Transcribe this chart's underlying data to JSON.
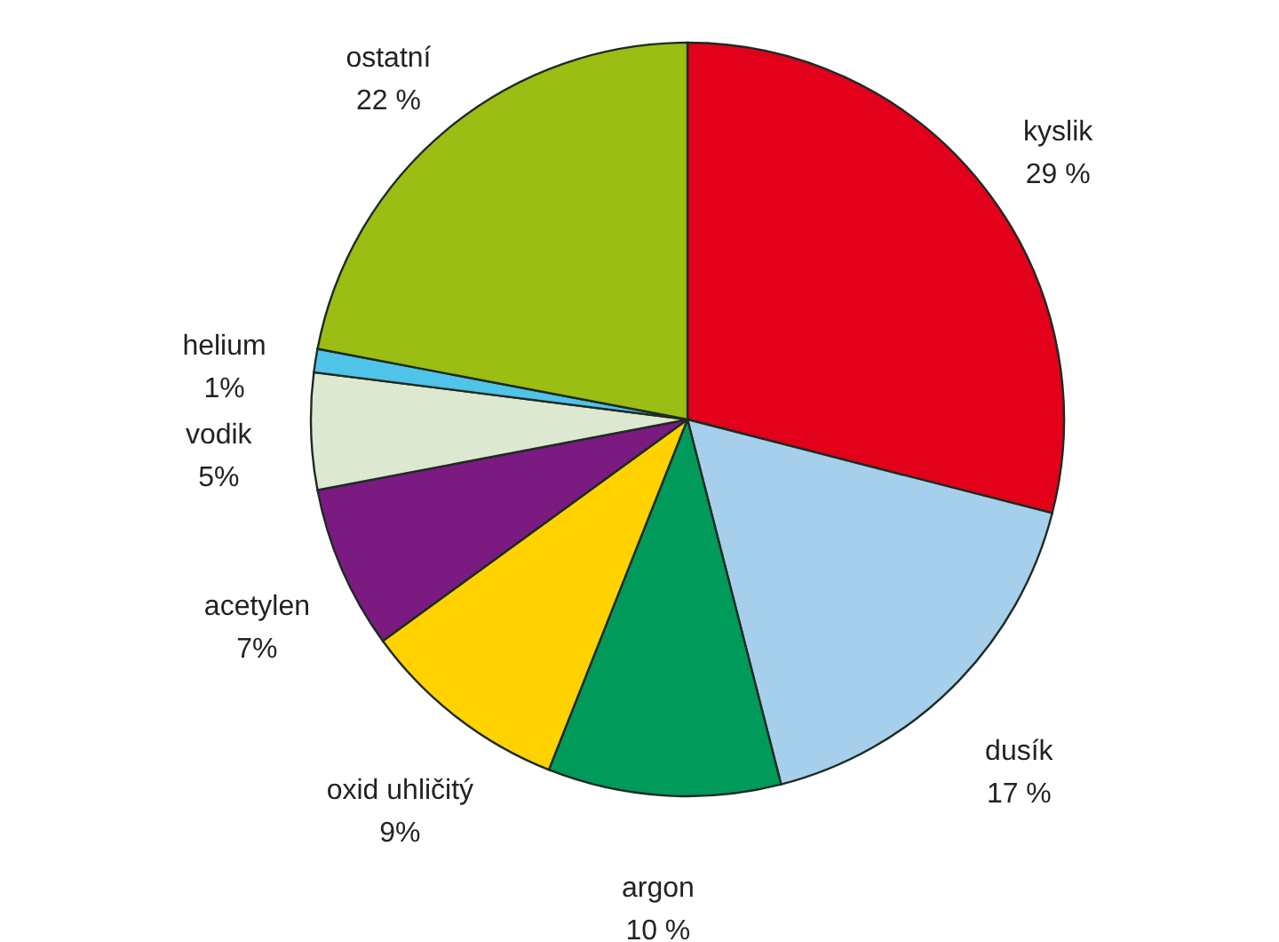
{
  "chart_data": {
    "type": "pie",
    "categories": [
      "kyslik",
      "dusík",
      "argon",
      "oxid uhličitý",
      "acetylen",
      "vodik",
      "helium",
      "ostatní"
    ],
    "values": [
      29,
      17,
      10,
      9,
      7,
      5,
      1,
      22
    ],
    "value_labels": [
      "29 %",
      "17 %",
      "10 %",
      "9%",
      "7%",
      "5%",
      "1%",
      "22 %"
    ],
    "colors": [
      "#e2001a",
      "#a6cfec",
      "#009a5a",
      "#ffd200",
      "#7b1a80",
      "#dde8d0",
      "#4fc3e8",
      "#9bbd14"
    ]
  }
}
